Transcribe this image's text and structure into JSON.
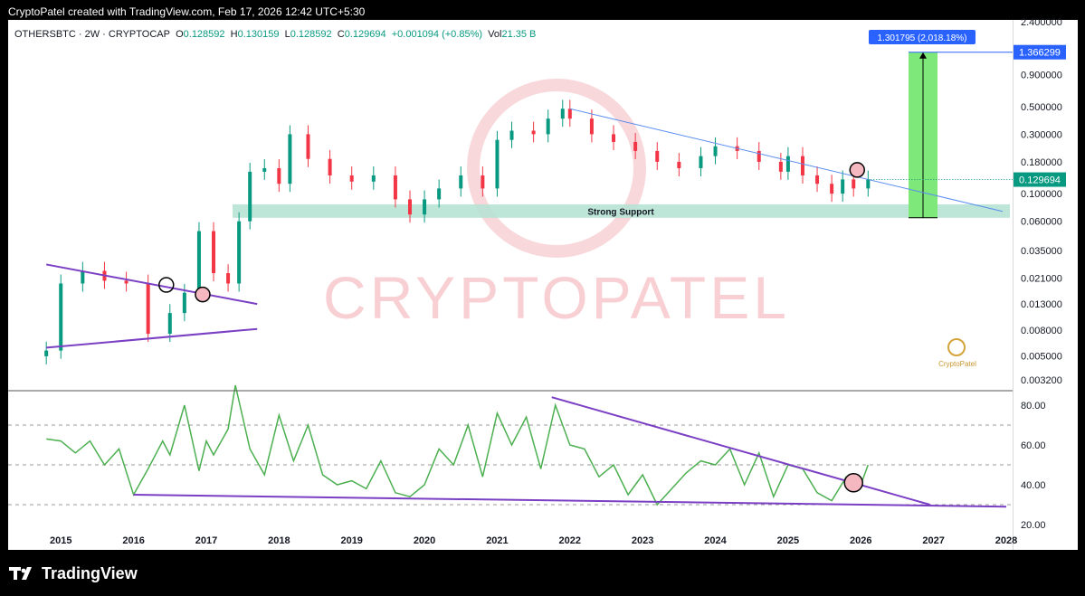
{
  "header": {
    "credit": "CryptoPatel created with TradingView.com, Feb 17, 2026 12:42 UTC+5:30"
  },
  "legend": {
    "symbol": "OTHERSBTC · 2W · CRYPTOCAP",
    "open_label": "O",
    "open": "0.128592",
    "high_label": "H",
    "high": "0.130159",
    "low_label": "L",
    "low": "0.128592",
    "close_label": "C",
    "close": "0.129694",
    "change": "+0.001094 (+0.85%)",
    "vol_label": "Vol",
    "vol": "21.35 B"
  },
  "annotations": {
    "support_label": "Strong Support",
    "target_box": "1.301795 (2,018.18%)",
    "target_price": "1.366299",
    "last_price": "0.129694",
    "watermark": "CRYPTOPATEL",
    "logo_text": "CryptoPatel"
  },
  "brand": {
    "name": "TradingView"
  },
  "colors": {
    "up": "#089981",
    "down": "#f23645",
    "rsi": "#4caf50",
    "trend": "#7b3fc4",
    "resistance": "#5b8def",
    "support_zone": "#b6e3d4",
    "target_zone": "#7ee87a",
    "price_label": "#2962ff"
  },
  "chart_data": [
    {
      "type": "candlestick",
      "title": "OTHERSBTC · 2W · CRYPTOCAP",
      "y_scale": "log",
      "y_ticks": [
        "2.400000",
        "0.900000",
        "0.500000",
        "0.300000",
        "0.180000",
        "0.100000",
        "0.060000",
        "0.035000",
        "0.021000",
        "0.013000",
        "0.008000",
        "0.005000",
        "0.003200"
      ],
      "x_ticks": [
        "2015",
        "2016",
        "2017",
        "2018",
        "2019",
        "2020",
        "2021",
        "2022",
        "2023",
        "2024",
        "2025",
        "2026",
        "2027",
        "2028"
      ],
      "series": [
        {
          "x": [
            2014.8,
            2015.0,
            2015.3,
            2015.6,
            2015.9,
            2016.2,
            2016.5,
            2016.7,
            2016.9,
            2017.1,
            2017.3,
            2017.45,
            2017.6,
            2017.8,
            2018.0,
            2018.15,
            2018.4,
            2018.7,
            2019.0,
            2019.3,
            2019.6,
            2019.8,
            2020.0,
            2020.2,
            2020.5,
            2020.8,
            2021.0,
            2021.2,
            2021.5,
            2021.7,
            2021.9,
            2022.0,
            2022.3,
            2022.6,
            2022.9,
            2023.2,
            2023.5,
            2023.8,
            2024.0,
            2024.3,
            2024.6,
            2024.9,
            2025.0,
            2025.2,
            2025.4,
            2025.6,
            2025.75,
            2025.9,
            2026.1
          ],
          "close": [
            0.0055,
            0.019,
            0.024,
            0.02,
            0.019,
            0.0075,
            0.011,
            0.016,
            0.05,
            0.023,
            0.019,
            0.06,
            0.15,
            0.16,
            0.12,
            0.3,
            0.19,
            0.14,
            0.125,
            0.14,
            0.09,
            0.068,
            0.09,
            0.11,
            0.14,
            0.11,
            0.27,
            0.32,
            0.3,
            0.4,
            0.48,
            0.4,
            0.3,
            0.26,
            0.22,
            0.18,
            0.16,
            0.2,
            0.24,
            0.22,
            0.18,
            0.15,
            0.2,
            0.14,
            0.12,
            0.1,
            0.13,
            0.11,
            0.1297
          ]
        }
      ],
      "trendlines": [
        {
          "name": "resistance",
          "from": [
            2022.0,
            0.48
          ],
          "to": [
            2027.95,
            0.072
          ]
        },
        {
          "name": "upper wedge",
          "from": [
            2014.8,
            0.027
          ],
          "to": [
            2017.7,
            0.013
          ]
        },
        {
          "name": "lower wedge",
          "from": [
            2014.8,
            0.0058
          ],
          "to": [
            2017.7,
            0.0082
          ]
        }
      ],
      "support_zone": [
        0.064,
        0.082
      ],
      "target": {
        "from": 0.064,
        "to": 1.366299,
        "gain": "1.301795 (2,018.18%)"
      }
    },
    {
      "type": "line",
      "y_ticks": [
        "80.00",
        "60.00",
        "40.00",
        "20.00"
      ],
      "ylim": [
        20,
        85
      ],
      "levels": [
        70,
        50,
        30
      ],
      "series": [
        {
          "x": [
            2014.8,
            2015.0,
            2015.2,
            2015.4,
            2015.6,
            2015.8,
            2016.0,
            2016.2,
            2016.4,
            2016.5,
            2016.7,
            2016.9,
            2017.0,
            2017.1,
            2017.3,
            2017.4,
            2017.6,
            2017.8,
            2018.0,
            2018.2,
            2018.4,
            2018.6,
            2018.8,
            2019.0,
            2019.2,
            2019.4,
            2019.6,
            2019.8,
            2020.0,
            2020.2,
            2020.4,
            2020.6,
            2020.8,
            2021.0,
            2021.2,
            2021.4,
            2021.6,
            2021.8,
            2022.0,
            2022.2,
            2022.4,
            2022.6,
            2022.8,
            2023.0,
            2023.2,
            2023.4,
            2023.6,
            2023.8,
            2024.0,
            2024.2,
            2024.4,
            2024.6,
            2024.8,
            2025.0,
            2025.2,
            2025.4,
            2025.6,
            2025.8,
            2026.0,
            2026.1
          ],
          "y": [
            63,
            62,
            56,
            62,
            50,
            58,
            35,
            48,
            62,
            55,
            80,
            47,
            62,
            55,
            68,
            90,
            58,
            45,
            75,
            52,
            70,
            45,
            40,
            42,
            38,
            52,
            36,
            34,
            40,
            58,
            50,
            70,
            44,
            76,
            60,
            74,
            48,
            80,
            60,
            58,
            44,
            50,
            35,
            45,
            30,
            38,
            46,
            52,
            50,
            58,
            40,
            56,
            34,
            50,
            48,
            36,
            32,
            44,
            40,
            50
          ]
        }
      ],
      "trendlines": [
        {
          "name": "rsi support",
          "from": [
            2016.0,
            35
          ],
          "to": [
            2028.0,
            29
          ]
        },
        {
          "name": "rsi resistance",
          "from": [
            2021.75,
            84
          ],
          "to": [
            2026.95,
            30
          ]
        }
      ]
    }
  ]
}
